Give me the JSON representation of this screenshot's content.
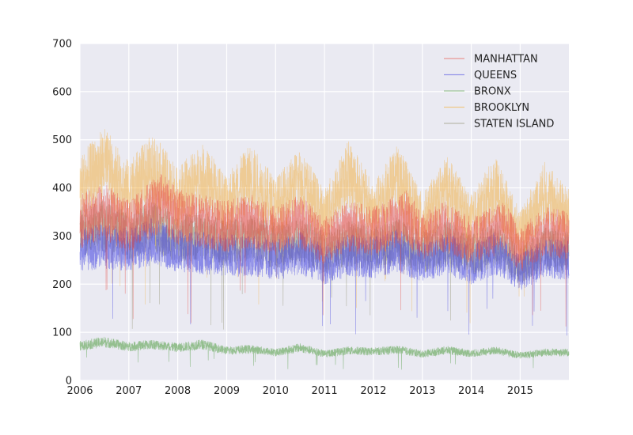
{
  "chart_data": {
    "type": "line",
    "title": "",
    "xlabel": "",
    "ylabel": "",
    "x_range": [
      "2006-01-01",
      "2015-12-31"
    ],
    "ylim": [
      0,
      700
    ],
    "x_ticks": [
      {
        "label": "2006",
        "date": "2006-01-01"
      },
      {
        "label": "2007",
        "date": "2007-01-01"
      },
      {
        "label": "2008",
        "date": "2008-01-01"
      },
      {
        "label": "2009",
        "date": "2009-01-01"
      },
      {
        "label": "2010",
        "date": "2010-01-01"
      },
      {
        "label": "2011",
        "date": "2011-01-01"
      },
      {
        "label": "2012",
        "date": "2012-01-01"
      },
      {
        "label": "2013",
        "date": "2013-01-01"
      },
      {
        "label": "2014",
        "date": "2014-01-01"
      },
      {
        "label": "2015",
        "date": "2015-01-01"
      }
    ],
    "y_ticks": [
      {
        "label": "0",
        "value": 0
      },
      {
        "label": "100",
        "value": 100
      },
      {
        "label": "200",
        "value": 200
      },
      {
        "label": "300",
        "value": 300
      },
      {
        "label": "400",
        "value": 400
      },
      {
        "label": "500",
        "value": 500
      },
      {
        "label": "600",
        "value": 600
      },
      {
        "label": "700",
        "value": 700
      }
    ],
    "grid": true,
    "legend": "top-right",
    "background": "#EAEAF2",
    "grid_color": "#FFFFFF",
    "series": [
      {
        "name": "MANHATTAN",
        "color": "#E8453C",
        "points": [
          [
            "2006-01-01",
            330
          ],
          [
            "2006-07-01",
            350
          ],
          [
            "2007-01-01",
            320
          ],
          [
            "2007-09-01",
            370
          ],
          [
            "2008-01-01",
            340
          ],
          [
            "2008-07-01",
            330
          ],
          [
            "2009-01-01",
            320
          ],
          [
            "2009-07-01",
            330
          ],
          [
            "2010-01-01",
            310
          ],
          [
            "2010-07-01",
            330
          ],
          [
            "2011-01-01",
            290
          ],
          [
            "2011-07-01",
            320
          ],
          [
            "2012-01-01",
            310
          ],
          [
            "2012-09-01",
            340
          ],
          [
            "2013-01-01",
            300
          ],
          [
            "2013-07-01",
            320
          ],
          [
            "2014-01-01",
            290
          ],
          [
            "2014-09-01",
            320
          ],
          [
            "2015-01-01",
            270
          ],
          [
            "2015-07-01",
            310
          ],
          [
            "2015-12-31",
            300
          ]
        ]
      },
      {
        "name": "QUEENS",
        "color": "#3B3BE0",
        "points": [
          [
            "2006-01-01",
            270
          ],
          [
            "2006-07-01",
            280
          ],
          [
            "2007-01-01",
            270
          ],
          [
            "2007-07-01",
            290
          ],
          [
            "2008-01-01",
            270
          ],
          [
            "2008-07-01",
            265
          ],
          [
            "2009-01-01",
            260
          ],
          [
            "2009-07-01",
            260
          ],
          [
            "2010-01-01",
            250
          ],
          [
            "2010-07-01",
            265
          ],
          [
            "2011-01-01",
            240
          ],
          [
            "2011-07-01",
            260
          ],
          [
            "2012-01-01",
            255
          ],
          [
            "2012-07-01",
            270
          ],
          [
            "2013-01-01",
            245
          ],
          [
            "2013-07-01",
            265
          ],
          [
            "2014-01-01",
            240
          ],
          [
            "2014-07-01",
            265
          ],
          [
            "2015-01-01",
            225
          ],
          [
            "2015-07-01",
            255
          ],
          [
            "2015-12-31",
            250
          ]
        ]
      },
      {
        "name": "BRONX",
        "color": "#4C9A3E",
        "points": [
          [
            "2006-01-01",
            72
          ],
          [
            "2006-07-01",
            80
          ],
          [
            "2007-01-01",
            70
          ],
          [
            "2007-07-01",
            75
          ],
          [
            "2008-01-01",
            68
          ],
          [
            "2008-07-01",
            75
          ],
          [
            "2009-01-01",
            62
          ],
          [
            "2009-07-01",
            65
          ],
          [
            "2010-01-01",
            58
          ],
          [
            "2010-07-01",
            68
          ],
          [
            "2011-01-01",
            55
          ],
          [
            "2011-07-01",
            62
          ],
          [
            "2012-01-01",
            60
          ],
          [
            "2012-07-01",
            64
          ],
          [
            "2013-01-01",
            55
          ],
          [
            "2013-07-01",
            63
          ],
          [
            "2014-01-01",
            56
          ],
          [
            "2014-07-01",
            62
          ],
          [
            "2015-01-01",
            52
          ],
          [
            "2015-07-01",
            58
          ],
          [
            "2015-12-31",
            58
          ]
        ]
      },
      {
        "name": "BROOKLYN",
        "color": "#F5A623",
        "points": [
          [
            "2006-01-01",
            400
          ],
          [
            "2006-07-01",
            450
          ],
          [
            "2007-01-01",
            390
          ],
          [
            "2007-07-01",
            440
          ],
          [
            "2008-01-01",
            380
          ],
          [
            "2008-07-01",
            420
          ],
          [
            "2009-01-01",
            370
          ],
          [
            "2009-07-01",
            420
          ],
          [
            "2010-01-01",
            360
          ],
          [
            "2010-07-01",
            415
          ],
          [
            "2011-01-01",
            340
          ],
          [
            "2011-07-01",
            430
          ],
          [
            "2012-01-01",
            350
          ],
          [
            "2012-07-01",
            420
          ],
          [
            "2013-01-01",
            330
          ],
          [
            "2013-07-01",
            400
          ],
          [
            "2014-01-01",
            330
          ],
          [
            "2014-07-01",
            400
          ],
          [
            "2015-01-01",
            300
          ],
          [
            "2015-07-01",
            390
          ],
          [
            "2015-12-31",
            340
          ]
        ]
      },
      {
        "name": "STATEN ISLAND",
        "color": "#8C8C6A",
        "points": [
          [
            "2006-01-01",
            310
          ],
          [
            "2006-07-01",
            320
          ],
          [
            "2007-01-01",
            300
          ],
          [
            "2007-07-01",
            320
          ],
          [
            "2008-01-01",
            295
          ],
          [
            "2008-07-01",
            300
          ],
          [
            "2009-01-01",
            285
          ],
          [
            "2009-07-01",
            295
          ],
          [
            "2010-01-01",
            280
          ],
          [
            "2010-07-01",
            290
          ],
          [
            "2011-01-01",
            265
          ],
          [
            "2011-07-01",
            285
          ],
          [
            "2012-01-01",
            275
          ],
          [
            "2012-07-01",
            290
          ],
          [
            "2013-01-01",
            265
          ],
          [
            "2013-07-01",
            285
          ],
          [
            "2014-01-01",
            260
          ],
          [
            "2014-07-01",
            285
          ],
          [
            "2015-01-01",
            240
          ],
          [
            "2015-07-01",
            275
          ],
          [
            "2015-12-31",
            265
          ]
        ]
      }
    ]
  }
}
